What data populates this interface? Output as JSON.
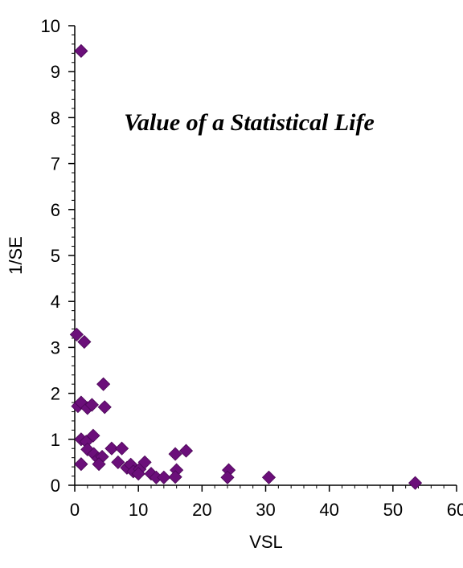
{
  "chart_data": {
    "type": "scatter",
    "title": "Value of a Statistical Life",
    "xlabel": "VSL",
    "ylabel": "1/SE",
    "xlim": [
      0,
      60
    ],
    "ylim": [
      0,
      10
    ],
    "xticks": [
      "0",
      "10",
      "20",
      "30",
      "40",
      "50",
      "60"
    ],
    "yticks": [
      "0",
      "1",
      "2",
      "3",
      "4",
      "5",
      "6",
      "7",
      "8",
      "9",
      "10"
    ],
    "grid": false,
    "legend": "none",
    "marker": "diamond",
    "marker_color": "#6B0F7A",
    "points": [
      {
        "x": 1.0,
        "y": 9.45
      },
      {
        "x": 0.3,
        "y": 3.28
      },
      {
        "x": 1.5,
        "y": 3.12
      },
      {
        "x": 0.5,
        "y": 1.72
      },
      {
        "x": 1.0,
        "y": 1.8
      },
      {
        "x": 2.0,
        "y": 1.68
      },
      {
        "x": 2.7,
        "y": 1.75
      },
      {
        "x": 4.5,
        "y": 2.2
      },
      {
        "x": 4.7,
        "y": 1.7
      },
      {
        "x": 1.0,
        "y": 1.0
      },
      {
        "x": 1.8,
        "y": 0.95
      },
      {
        "x": 2.9,
        "y": 1.08
      },
      {
        "x": 2.0,
        "y": 0.78
      },
      {
        "x": 3.0,
        "y": 0.68
      },
      {
        "x": 3.7,
        "y": 0.58
      },
      {
        "x": 4.3,
        "y": 0.62
      },
      {
        "x": 3.8,
        "y": 0.46
      },
      {
        "x": 1.0,
        "y": 0.46
      },
      {
        "x": 5.8,
        "y": 0.8
      },
      {
        "x": 7.4,
        "y": 0.8
      },
      {
        "x": 6.8,
        "y": 0.5
      },
      {
        "x": 8.2,
        "y": 0.38
      },
      {
        "x": 8.8,
        "y": 0.45
      },
      {
        "x": 9.2,
        "y": 0.3
      },
      {
        "x": 10.2,
        "y": 0.35
      },
      {
        "x": 11.0,
        "y": 0.5
      },
      {
        "x": 10.0,
        "y": 0.25
      },
      {
        "x": 12.0,
        "y": 0.25
      },
      {
        "x": 12.8,
        "y": 0.17
      },
      {
        "x": 14.0,
        "y": 0.17
      },
      {
        "x": 15.8,
        "y": 0.68
      },
      {
        "x": 17.5,
        "y": 0.75
      },
      {
        "x": 16.0,
        "y": 0.33
      },
      {
        "x": 15.8,
        "y": 0.18
      },
      {
        "x": 24.2,
        "y": 0.33
      },
      {
        "x": 24.0,
        "y": 0.17
      },
      {
        "x": 30.5,
        "y": 0.17
      },
      {
        "x": 53.5,
        "y": 0.05
      }
    ]
  }
}
